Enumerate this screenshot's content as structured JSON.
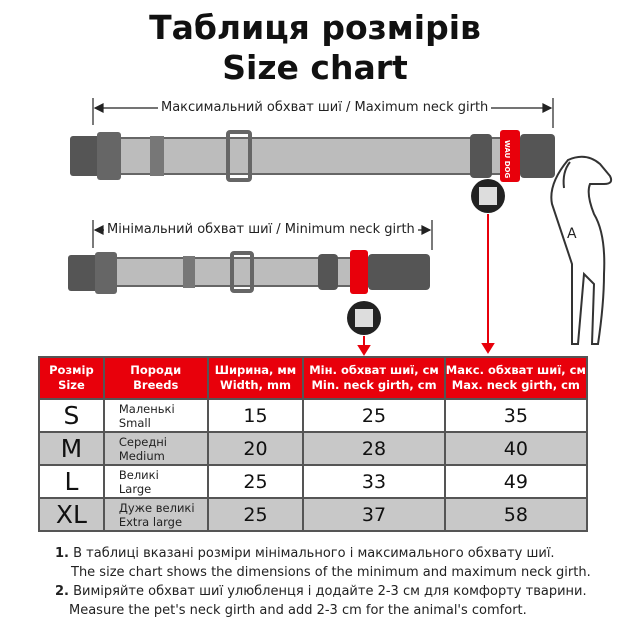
{
  "title_ua": "Таблиця розмірів",
  "title_en": "Size chart",
  "max_label": "Максимальний обхват шиї / Maximum neck girth",
  "min_label": "Мінімальний обхват шиї / Minimum neck girth",
  "tag_text": "WAU DOG",
  "dog_label": "A",
  "colors": {
    "accent": "#e8000b",
    "row_alt": "#c8c8c8",
    "collar": "#bcbcbc",
    "buckle": "#555555"
  },
  "table": {
    "headers": [
      {
        "ua": "Розмір",
        "en": "Size"
      },
      {
        "ua": "Породи",
        "en": "Breeds"
      },
      {
        "ua": "Ширина, мм",
        "en": "Width, mm"
      },
      {
        "ua": "Мін. обхват шиї, см",
        "en": "Min. neck girth, cm"
      },
      {
        "ua": "Макс. обхват шиї, см",
        "en": "Max. neck girth, cm"
      }
    ],
    "rows": [
      {
        "size": "S",
        "breed_ua": "Маленькі",
        "breed_en": "Small",
        "width": "15",
        "min": "25",
        "max": "35"
      },
      {
        "size": "M",
        "breed_ua": "Середні",
        "breed_en": "Medium",
        "width": "20",
        "min": "28",
        "max": "40"
      },
      {
        "size": "L",
        "breed_ua": "Великі",
        "breed_en": "Large",
        "width": "25",
        "min": "33",
        "max": "49"
      },
      {
        "size": "XL",
        "breed_ua": "Дуже великі",
        "breed_en": "Extra large",
        "width": "25",
        "min": "37",
        "max": "58"
      }
    ]
  },
  "notes": [
    {
      "num": "1.",
      "ua": "В таблиці вказані розміри мінімального і максимального  обхвату шиї.",
      "en": "The size chart shows the dimensions of the minimum and maximum neck girth."
    },
    {
      "num": "2.",
      "ua": "Виміряйте обхват шиї улюбленця і додайте 2-3 см для комфорту тварини.",
      "en": "Measure the pet's neck girth and add 2-3 cm for the animal's comfort."
    }
  ]
}
